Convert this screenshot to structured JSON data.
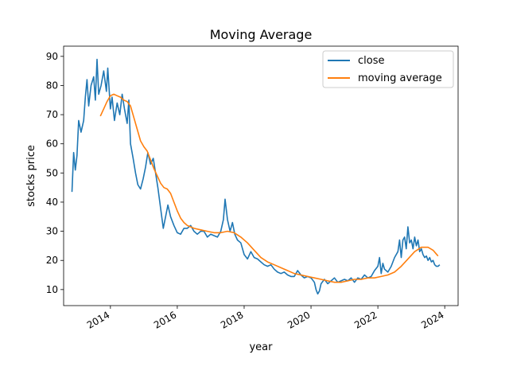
{
  "chart_data": {
    "type": "line",
    "title": "Moving Average",
    "xlabel": "year",
    "ylabel": "stocks price",
    "xlim": [
      2012.6,
      2024.4
    ],
    "ylim": [
      4.5,
      93.5
    ],
    "x_ticks": [
      2014,
      2016,
      2018,
      2020,
      2022,
      2024
    ],
    "y_ticks": [
      10,
      20,
      30,
      40,
      50,
      60,
      70,
      80,
      90
    ],
    "grid": false,
    "legend_position": "top-right",
    "series": [
      {
        "name": "close",
        "color": "#1f77b4",
        "points": [
          [
            2012.85,
            43.5
          ],
          [
            2012.9,
            57
          ],
          [
            2012.95,
            51
          ],
          [
            2013.0,
            56
          ],
          [
            2013.05,
            68
          ],
          [
            2013.12,
            64
          ],
          [
            2013.2,
            68
          ],
          [
            2013.25,
            76
          ],
          [
            2013.3,
            82
          ],
          [
            2013.35,
            73
          ],
          [
            2013.42,
            80
          ],
          [
            2013.5,
            83
          ],
          [
            2013.55,
            75
          ],
          [
            2013.6,
            89
          ],
          [
            2013.65,
            77
          ],
          [
            2013.72,
            80
          ],
          [
            2013.8,
            85
          ],
          [
            2013.88,
            78
          ],
          [
            2013.92,
            86
          ],
          [
            2014.0,
            72
          ],
          [
            2014.05,
            76
          ],
          [
            2014.12,
            68
          ],
          [
            2014.2,
            74
          ],
          [
            2014.28,
            70
          ],
          [
            2014.35,
            77
          ],
          [
            2014.42,
            72
          ],
          [
            2014.5,
            67
          ],
          [
            2014.55,
            75
          ],
          [
            2014.6,
            60
          ],
          [
            2014.68,
            55
          ],
          [
            2014.75,
            50
          ],
          [
            2014.82,
            46
          ],
          [
            2014.9,
            44.5
          ],
          [
            2014.98,
            48
          ],
          [
            2015.05,
            52
          ],
          [
            2015.12,
            57
          ],
          [
            2015.2,
            53
          ],
          [
            2015.28,
            55
          ],
          [
            2015.35,
            50
          ],
          [
            2015.42,
            45
          ],
          [
            2015.5,
            38
          ],
          [
            2015.58,
            31
          ],
          [
            2015.65,
            35
          ],
          [
            2015.72,
            39
          ],
          [
            2015.8,
            35
          ],
          [
            2015.9,
            32
          ],
          [
            2016.0,
            29.5
          ],
          [
            2016.1,
            29
          ],
          [
            2016.2,
            31
          ],
          [
            2016.3,
            31
          ],
          [
            2016.4,
            32
          ],
          [
            2016.5,
            30
          ],
          [
            2016.6,
            29
          ],
          [
            2016.7,
            30
          ],
          [
            2016.8,
            30
          ],
          [
            2016.9,
            28
          ],
          [
            2017.0,
            29
          ],
          [
            2017.1,
            28.5
          ],
          [
            2017.2,
            28
          ],
          [
            2017.3,
            30
          ],
          [
            2017.38,
            34
          ],
          [
            2017.43,
            41
          ],
          [
            2017.5,
            34
          ],
          [
            2017.58,
            30
          ],
          [
            2017.65,
            33
          ],
          [
            2017.72,
            29
          ],
          [
            2017.8,
            27
          ],
          [
            2017.9,
            26
          ],
          [
            2018.0,
            22
          ],
          [
            2018.1,
            20.5
          ],
          [
            2018.2,
            23
          ],
          [
            2018.3,
            21
          ],
          [
            2018.4,
            20.5
          ],
          [
            2018.5,
            19.5
          ],
          [
            2018.6,
            18.5
          ],
          [
            2018.7,
            18
          ],
          [
            2018.8,
            18.5
          ],
          [
            2018.9,
            17
          ],
          [
            2019.0,
            16
          ],
          [
            2019.1,
            15.5
          ],
          [
            2019.2,
            16
          ],
          [
            2019.3,
            15
          ],
          [
            2019.4,
            14.5
          ],
          [
            2019.5,
            14.5
          ],
          [
            2019.6,
            16.5
          ],
          [
            2019.7,
            15
          ],
          [
            2019.8,
            14
          ],
          [
            2019.9,
            14.5
          ],
          [
            2020.0,
            14
          ],
          [
            2020.1,
            12.5
          ],
          [
            2020.15,
            10
          ],
          [
            2020.2,
            8.5
          ],
          [
            2020.25,
            9.5
          ],
          [
            2020.3,
            12
          ],
          [
            2020.4,
            13.5
          ],
          [
            2020.5,
            12
          ],
          [
            2020.6,
            13
          ],
          [
            2020.7,
            14
          ],
          [
            2020.8,
            12.5
          ],
          [
            2020.9,
            13
          ],
          [
            2021.0,
            13.5
          ],
          [
            2021.1,
            13
          ],
          [
            2021.2,
            14
          ],
          [
            2021.3,
            12.5
          ],
          [
            2021.4,
            14
          ],
          [
            2021.5,
            13.5
          ],
          [
            2021.6,
            15
          ],
          [
            2021.7,
            14
          ],
          [
            2021.8,
            14.5
          ],
          [
            2021.9,
            16.5
          ],
          [
            2022.0,
            18
          ],
          [
            2022.05,
            21
          ],
          [
            2022.1,
            15.5
          ],
          [
            2022.15,
            19
          ],
          [
            2022.2,
            17
          ],
          [
            2022.3,
            16
          ],
          [
            2022.4,
            18
          ],
          [
            2022.5,
            21
          ],
          [
            2022.6,
            23
          ],
          [
            2022.65,
            27
          ],
          [
            2022.7,
            21
          ],
          [
            2022.75,
            27
          ],
          [
            2022.8,
            28
          ],
          [
            2022.85,
            24
          ],
          [
            2022.9,
            31.5
          ],
          [
            2022.95,
            26
          ],
          [
            2023.0,
            27
          ],
          [
            2023.05,
            24
          ],
          [
            2023.1,
            28
          ],
          [
            2023.15,
            25
          ],
          [
            2023.2,
            27
          ],
          [
            2023.25,
            23
          ],
          [
            2023.3,
            24
          ],
          [
            2023.35,
            22
          ],
          [
            2023.4,
            21
          ],
          [
            2023.45,
            21.5
          ],
          [
            2023.5,
            20
          ],
          [
            2023.55,
            21
          ],
          [
            2023.6,
            19.5
          ],
          [
            2023.65,
            20
          ],
          [
            2023.7,
            18.5
          ],
          [
            2023.75,
            18
          ],
          [
            2023.8,
            18
          ],
          [
            2023.85,
            18.5
          ]
        ]
      },
      {
        "name": "moving average",
        "color": "#ff7f0e",
        "points": [
          [
            2013.7,
            69.5
          ],
          [
            2013.8,
            72
          ],
          [
            2013.9,
            74.5
          ],
          [
            2014.0,
            76.5
          ],
          [
            2014.1,
            77
          ],
          [
            2014.2,
            76.5
          ],
          [
            2014.3,
            76
          ],
          [
            2014.4,
            75
          ],
          [
            2014.5,
            74.5
          ],
          [
            2014.6,
            73
          ],
          [
            2014.7,
            69
          ],
          [
            2014.8,
            65
          ],
          [
            2014.9,
            61
          ],
          [
            2015.0,
            59
          ],
          [
            2015.1,
            57.5
          ],
          [
            2015.2,
            54.5
          ],
          [
            2015.3,
            51.5
          ],
          [
            2015.4,
            49
          ],
          [
            2015.5,
            46.5
          ],
          [
            2015.6,
            45
          ],
          [
            2015.7,
            44.5
          ],
          [
            2015.8,
            43
          ],
          [
            2015.9,
            40
          ],
          [
            2016.0,
            37
          ],
          [
            2016.1,
            34.5
          ],
          [
            2016.2,
            33
          ],
          [
            2016.3,
            32
          ],
          [
            2016.5,
            31
          ],
          [
            2016.7,
            30.5
          ],
          [
            2016.9,
            30
          ],
          [
            2017.1,
            29.5
          ],
          [
            2017.3,
            29.5
          ],
          [
            2017.5,
            30
          ],
          [
            2017.7,
            29.5
          ],
          [
            2017.9,
            28
          ],
          [
            2018.1,
            26
          ],
          [
            2018.3,
            23.5
          ],
          [
            2018.5,
            21
          ],
          [
            2018.7,
            19.5
          ],
          [
            2018.9,
            18.5
          ],
          [
            2019.1,
            17.5
          ],
          [
            2019.3,
            16.5
          ],
          [
            2019.5,
            15.5
          ],
          [
            2019.7,
            15
          ],
          [
            2019.9,
            14.5
          ],
          [
            2020.1,
            14
          ],
          [
            2020.3,
            13.5
          ],
          [
            2020.5,
            13
          ],
          [
            2020.7,
            12.5
          ],
          [
            2020.9,
            12.5
          ],
          [
            2021.1,
            13
          ],
          [
            2021.3,
            13.5
          ],
          [
            2021.5,
            13.5
          ],
          [
            2021.7,
            14
          ],
          [
            2021.9,
            14
          ],
          [
            2022.1,
            14.5
          ],
          [
            2022.3,
            15
          ],
          [
            2022.5,
            16
          ],
          [
            2022.7,
            18
          ],
          [
            2022.9,
            20.5
          ],
          [
            2023.1,
            23
          ],
          [
            2023.3,
            24.5
          ],
          [
            2023.5,
            24.5
          ],
          [
            2023.65,
            23.5
          ],
          [
            2023.8,
            21.5
          ]
        ]
      }
    ]
  }
}
